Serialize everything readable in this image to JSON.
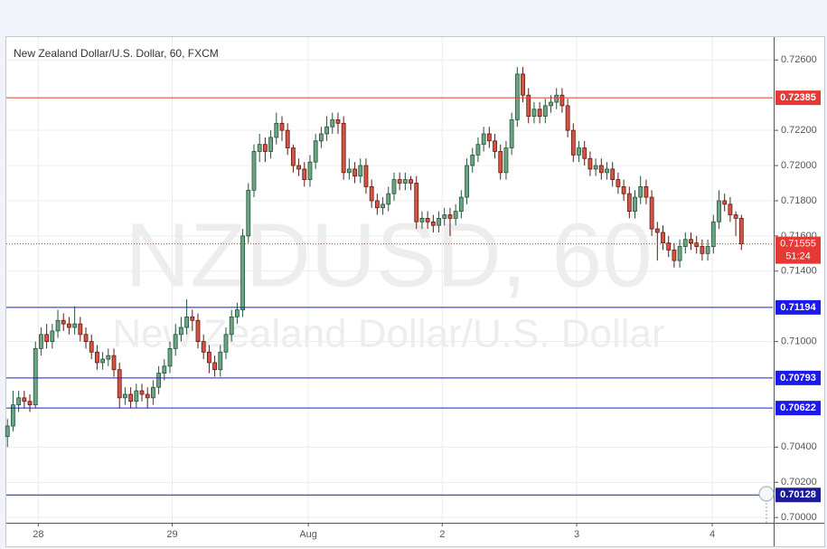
{
  "chart_data": {
    "type": "candlestick",
    "title": "New Zealand Dollar/U.S. Dollar, 60, FXCM",
    "watermark": {
      "symbol": "NZDUSD, 60",
      "description": "New Zealand Dollar/U.S. Dollar"
    },
    "up_color": "#6ba583",
    "down_color": "#d75442",
    "ylim": [
      0.6997,
      0.7273
    ],
    "yticks": [
      {
        "value": 0.7,
        "label": "0.70000"
      },
      {
        "value": 0.702,
        "label": "0.70200"
      },
      {
        "value": 0.704,
        "label": "0.70400"
      },
      {
        "value": 0.71,
        "label": "0.71000"
      },
      {
        "value": 0.714,
        "label": "0.71400"
      },
      {
        "value": 0.716,
        "label": "0.71600"
      },
      {
        "value": 0.718,
        "label": "0.71800"
      },
      {
        "value": 0.72,
        "label": "0.72000"
      },
      {
        "value": 0.722,
        "label": "0.72200"
      },
      {
        "value": 0.726,
        "label": "0.72600"
      }
    ],
    "xlim": [
      -0.2,
      136.6
    ],
    "xticks": [
      {
        "value": 5.5,
        "label": "28"
      },
      {
        "value": 29.4,
        "label": "29"
      },
      {
        "value": 53.7,
        "label": "Aug"
      },
      {
        "value": 77.6,
        "label": "2"
      },
      {
        "value": 101.6,
        "label": "3"
      },
      {
        "value": 125.8,
        "label": "4"
      }
    ],
    "grid": true,
    "levels": [
      {
        "value": 0.72385,
        "color": "#e53935"
      },
      {
        "value": 0.71194,
        "color": "#1a1aeb"
      },
      {
        "value": 0.70793,
        "color": "#1a1aeb"
      },
      {
        "value": 0.70622,
        "color": "#1a1aeb"
      },
      {
        "value": 0.70128,
        "color": "#1a1a9a"
      }
    ],
    "last_price": {
      "value": 0.71555,
      "countdown": "51:24",
      "color": "#e53935"
    },
    "candles": [
      [
        0.7046,
        0.7056,
        0.704,
        0.7052
      ],
      [
        0.7052,
        0.7072,
        0.7049,
        0.7064
      ],
      [
        0.7064,
        0.7072,
        0.706,
        0.7068
      ],
      [
        0.7068,
        0.7072,
        0.7062,
        0.7066
      ],
      [
        0.7066,
        0.707,
        0.706,
        0.7064
      ],
      [
        0.7064,
        0.71,
        0.7062,
        0.7096
      ],
      [
        0.7096,
        0.7108,
        0.7092,
        0.7104
      ],
      [
        0.7104,
        0.711,
        0.7096,
        0.71
      ],
      [
        0.71,
        0.711,
        0.7096,
        0.7106
      ],
      [
        0.7106,
        0.7118,
        0.7102,
        0.7112
      ],
      [
        0.7112,
        0.7116,
        0.7106,
        0.711
      ],
      [
        0.711,
        0.7114,
        0.7104,
        0.7108
      ],
      [
        0.7108,
        0.712,
        0.7104,
        0.711
      ],
      [
        0.711,
        0.7114,
        0.71,
        0.7104
      ],
      [
        0.7104,
        0.7108,
        0.7096,
        0.71
      ],
      [
        0.71,
        0.7104,
        0.709,
        0.7094
      ],
      [
        0.7094,
        0.7098,
        0.7084,
        0.7088
      ],
      [
        0.7088,
        0.7094,
        0.7084,
        0.709
      ],
      [
        0.709,
        0.7096,
        0.7086,
        0.7092
      ],
      [
        0.7092,
        0.7096,
        0.708,
        0.7084
      ],
      [
        0.7084,
        0.7088,
        0.7062,
        0.7068
      ],
      [
        0.7068,
        0.7074,
        0.7064,
        0.707
      ],
      [
        0.707,
        0.7074,
        0.7062,
        0.7066
      ],
      [
        0.7066,
        0.7076,
        0.7062,
        0.7072
      ],
      [
        0.7072,
        0.7076,
        0.7066,
        0.707
      ],
      [
        0.707,
        0.7074,
        0.7062,
        0.7068
      ],
      [
        0.7068,
        0.7078,
        0.7064,
        0.7074
      ],
      [
        0.7074,
        0.7086,
        0.707,
        0.7082
      ],
      [
        0.7082,
        0.709,
        0.7078,
        0.7086
      ],
      [
        0.7086,
        0.71,
        0.7082,
        0.7096
      ],
      [
        0.7096,
        0.711,
        0.7092,
        0.7104
      ],
      [
        0.7104,
        0.7114,
        0.71,
        0.7108
      ],
      [
        0.7108,
        0.7124,
        0.7104,
        0.7114
      ],
      [
        0.7114,
        0.7118,
        0.7106,
        0.7112
      ],
      [
        0.7112,
        0.7116,
        0.7096,
        0.71
      ],
      [
        0.71,
        0.7104,
        0.709,
        0.7094
      ],
      [
        0.7094,
        0.7098,
        0.7082,
        0.7088
      ],
      [
        0.7088,
        0.7092,
        0.708,
        0.7084
      ],
      [
        0.7084,
        0.7098,
        0.708,
        0.7094
      ],
      [
        0.7094,
        0.7108,
        0.709,
        0.7104
      ],
      [
        0.7104,
        0.7118,
        0.71,
        0.7114
      ],
      [
        0.7114,
        0.7122,
        0.711,
        0.7118
      ],
      [
        0.7118,
        0.7164,
        0.7114,
        0.716
      ],
      [
        0.716,
        0.719,
        0.7156,
        0.7186
      ],
      [
        0.7186,
        0.7212,
        0.7182,
        0.7208
      ],
      [
        0.7208,
        0.7218,
        0.7202,
        0.7212
      ],
      [
        0.7212,
        0.7216,
        0.7202,
        0.7208
      ],
      [
        0.7208,
        0.722,
        0.7204,
        0.7216
      ],
      [
        0.7216,
        0.723,
        0.7212,
        0.7224
      ],
      [
        0.7224,
        0.7228,
        0.7214,
        0.722
      ],
      [
        0.722,
        0.7224,
        0.7206,
        0.721
      ],
      [
        0.721,
        0.7212,
        0.7196,
        0.72
      ],
      [
        0.72,
        0.7204,
        0.7194,
        0.7198
      ],
      [
        0.7198,
        0.7202,
        0.7188,
        0.7192
      ],
      [
        0.7192,
        0.7206,
        0.7188,
        0.7202
      ],
      [
        0.7202,
        0.7218,
        0.7198,
        0.7214
      ],
      [
        0.7214,
        0.7222,
        0.721,
        0.7218
      ],
      [
        0.7218,
        0.7228,
        0.7214,
        0.7222
      ],
      [
        0.7222,
        0.723,
        0.7218,
        0.7226
      ],
      [
        0.7226,
        0.723,
        0.7218,
        0.7224
      ],
      [
        0.7224,
        0.7228,
        0.7192,
        0.7196
      ],
      [
        0.7196,
        0.7204,
        0.7192,
        0.7198
      ],
      [
        0.7198,
        0.7202,
        0.719,
        0.7194
      ],
      [
        0.7194,
        0.7204,
        0.719,
        0.72
      ],
      [
        0.72,
        0.7204,
        0.7184,
        0.7188
      ],
      [
        0.7188,
        0.7192,
        0.7176,
        0.718
      ],
      [
        0.718,
        0.7184,
        0.7172,
        0.7176
      ],
      [
        0.7176,
        0.7182,
        0.7172,
        0.7178
      ],
      [
        0.7178,
        0.7188,
        0.7174,
        0.7184
      ],
      [
        0.7184,
        0.7196,
        0.718,
        0.7192
      ],
      [
        0.7192,
        0.7196,
        0.7186,
        0.719
      ],
      [
        0.719,
        0.7196,
        0.7186,
        0.7192
      ],
      [
        0.7192,
        0.7194,
        0.7186,
        0.719
      ],
      [
        0.719,
        0.7194,
        0.7164,
        0.7168
      ],
      [
        0.7168,
        0.7174,
        0.7164,
        0.717
      ],
      [
        0.717,
        0.7174,
        0.7164,
        0.7168
      ],
      [
        0.7168,
        0.7172,
        0.7162,
        0.7166
      ],
      [
        0.7166,
        0.7174,
        0.7162,
        0.717
      ],
      [
        0.717,
        0.7176,
        0.7166,
        0.7172
      ],
      [
        0.7172,
        0.7176,
        0.716,
        0.717
      ],
      [
        0.717,
        0.7178,
        0.7166,
        0.7174
      ],
      [
        0.7174,
        0.7186,
        0.717,
        0.7182
      ],
      [
        0.7182,
        0.7204,
        0.7178,
        0.72
      ],
      [
        0.72,
        0.721,
        0.7196,
        0.7206
      ],
      [
        0.7206,
        0.7216,
        0.7202,
        0.7212
      ],
      [
        0.7212,
        0.7222,
        0.7208,
        0.7218
      ],
      [
        0.7218,
        0.7222,
        0.721,
        0.7214
      ],
      [
        0.7214,
        0.7218,
        0.7204,
        0.7208
      ],
      [
        0.7208,
        0.7212,
        0.7192,
        0.7196
      ],
      [
        0.7196,
        0.7214,
        0.7192,
        0.721
      ],
      [
        0.721,
        0.723,
        0.7206,
        0.7226
      ],
      [
        0.7226,
        0.7256,
        0.7222,
        0.7252
      ],
      [
        0.7252,
        0.7256,
        0.7236,
        0.724
      ],
      [
        0.724,
        0.7244,
        0.7224,
        0.7228
      ],
      [
        0.7228,
        0.7236,
        0.7224,
        0.7232
      ],
      [
        0.7232,
        0.7236,
        0.7224,
        0.7228
      ],
      [
        0.7228,
        0.7238,
        0.7224,
        0.7234
      ],
      [
        0.7234,
        0.724,
        0.723,
        0.7236
      ],
      [
        0.7236,
        0.7244,
        0.7232,
        0.724
      ],
      [
        0.724,
        0.7244,
        0.723,
        0.7234
      ],
      [
        0.7234,
        0.7238,
        0.7216,
        0.722
      ],
      [
        0.722,
        0.7224,
        0.7202,
        0.7206
      ],
      [
        0.7206,
        0.7214,
        0.7202,
        0.721
      ],
      [
        0.721,
        0.7214,
        0.72,
        0.7204
      ],
      [
        0.7204,
        0.7208,
        0.7194,
        0.7198
      ],
      [
        0.7198,
        0.7204,
        0.7194,
        0.72
      ],
      [
        0.72,
        0.7204,
        0.7192,
        0.7196
      ],
      [
        0.7196,
        0.7202,
        0.7192,
        0.7198
      ],
      [
        0.7198,
        0.7202,
        0.7188,
        0.7192
      ],
      [
        0.7192,
        0.7196,
        0.7184,
        0.7188
      ],
      [
        0.7188,
        0.7192,
        0.718,
        0.7184
      ],
      [
        0.7184,
        0.7188,
        0.717,
        0.7174
      ],
      [
        0.7174,
        0.7186,
        0.717,
        0.7182
      ],
      [
        0.7182,
        0.7194,
        0.7178,
        0.7188
      ],
      [
        0.7188,
        0.7192,
        0.7178,
        0.7182
      ],
      [
        0.7182,
        0.7186,
        0.716,
        0.7164
      ],
      [
        0.7164,
        0.7168,
        0.7146,
        0.7162
      ],
      [
        0.7162,
        0.7166,
        0.7152,
        0.7156
      ],
      [
        0.7156,
        0.716,
        0.7148,
        0.7152
      ],
      [
        0.7152,
        0.7156,
        0.7142,
        0.7146
      ],
      [
        0.7146,
        0.7158,
        0.7142,
        0.7154
      ],
      [
        0.7154,
        0.7162,
        0.715,
        0.7158
      ],
      [
        0.7158,
        0.7162,
        0.7152,
        0.7156
      ],
      [
        0.7156,
        0.716,
        0.715,
        0.7154
      ],
      [
        0.7154,
        0.7158,
        0.7146,
        0.715
      ],
      [
        0.715,
        0.7158,
        0.7146,
        0.7154
      ],
      [
        0.7154,
        0.7172,
        0.715,
        0.7168
      ],
      [
        0.7168,
        0.7186,
        0.7164,
        0.718
      ],
      [
        0.718,
        0.7184,
        0.7174,
        0.7178
      ],
      [
        0.7178,
        0.7182,
        0.7168,
        0.7172
      ],
      [
        0.7172,
        0.7174,
        0.716,
        0.717
      ],
      [
        0.717,
        0.7172,
        0.7152,
        0.71555
      ]
    ]
  }
}
